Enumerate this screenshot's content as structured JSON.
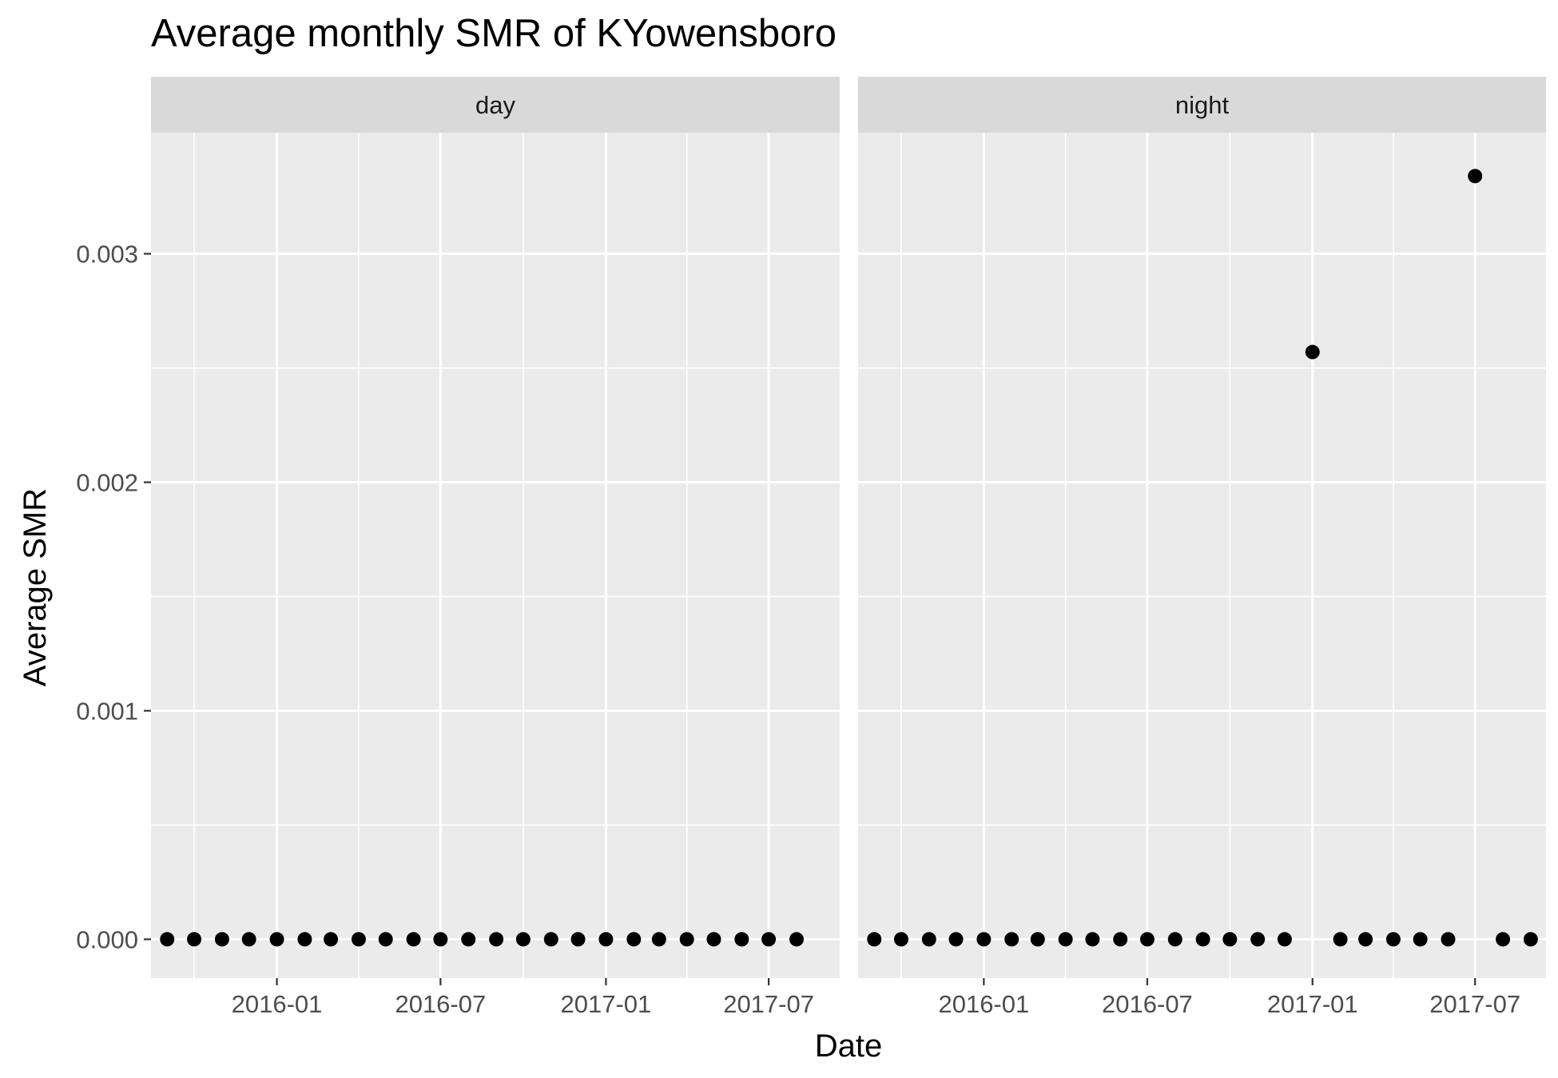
{
  "chart_data": {
    "type": "scatter",
    "title": "Average monthly SMR of KYowensboro",
    "xlabel": "Date",
    "ylabel": "Average SMR",
    "x_ticks": [
      "2016-01",
      "2016-07",
      "2017-01",
      "2017-07"
    ],
    "y_ticks": [
      "0.000",
      "0.001",
      "0.002",
      "0.003"
    ],
    "ylim": [
      -0.00017,
      0.00353
    ],
    "xlim": [
      "2015-08-14",
      "2017-09-18"
    ],
    "grid": true,
    "point_color": "#000000",
    "facets": [
      {
        "label": "day",
        "points": [
          {
            "x": "2015-09-01",
            "y": 0
          },
          {
            "x": "2015-10-01",
            "y": 0
          },
          {
            "x": "2015-11-01",
            "y": 0
          },
          {
            "x": "2015-12-01",
            "y": 0
          },
          {
            "x": "2016-01-01",
            "y": 0
          },
          {
            "x": "2016-02-01",
            "y": 0
          },
          {
            "x": "2016-03-01",
            "y": 0
          },
          {
            "x": "2016-04-01",
            "y": 0
          },
          {
            "x": "2016-05-01",
            "y": 0
          },
          {
            "x": "2016-06-01",
            "y": 0
          },
          {
            "x": "2016-07-01",
            "y": 0
          },
          {
            "x": "2016-08-01",
            "y": 0
          },
          {
            "x": "2016-09-01",
            "y": 0
          },
          {
            "x": "2016-10-01",
            "y": 0
          },
          {
            "x": "2016-11-01",
            "y": 0
          },
          {
            "x": "2016-12-01",
            "y": 0
          },
          {
            "x": "2017-01-01",
            "y": 0
          },
          {
            "x": "2017-02-01",
            "y": 0
          },
          {
            "x": "2017-03-01",
            "y": 0
          },
          {
            "x": "2017-04-01",
            "y": 0
          },
          {
            "x": "2017-05-01",
            "y": 0
          },
          {
            "x": "2017-06-01",
            "y": 0
          },
          {
            "x": "2017-07-01",
            "y": 0
          },
          {
            "x": "2017-08-01",
            "y": 0
          }
        ]
      },
      {
        "label": "night",
        "points": [
          {
            "x": "2015-09-01",
            "y": 0
          },
          {
            "x": "2015-10-01",
            "y": 0
          },
          {
            "x": "2015-11-01",
            "y": 0
          },
          {
            "x": "2015-12-01",
            "y": 0
          },
          {
            "x": "2016-01-01",
            "y": 0
          },
          {
            "x": "2016-02-01",
            "y": 0
          },
          {
            "x": "2016-03-01",
            "y": 0
          },
          {
            "x": "2016-04-01",
            "y": 0
          },
          {
            "x": "2016-05-01",
            "y": 0
          },
          {
            "x": "2016-06-01",
            "y": 0
          },
          {
            "x": "2016-07-01",
            "y": 0
          },
          {
            "x": "2016-08-01",
            "y": 0
          },
          {
            "x": "2016-09-01",
            "y": 0
          },
          {
            "x": "2016-10-01",
            "y": 0
          },
          {
            "x": "2016-11-01",
            "y": 0
          },
          {
            "x": "2016-12-01",
            "y": 0
          },
          {
            "x": "2017-01-01",
            "y": 0.00257
          },
          {
            "x": "2017-02-01",
            "y": 0
          },
          {
            "x": "2017-03-01",
            "y": 0
          },
          {
            "x": "2017-04-01",
            "y": 0
          },
          {
            "x": "2017-05-01",
            "y": 0
          },
          {
            "x": "2017-06-01",
            "y": 0
          },
          {
            "x": "2017-07-01",
            "y": 0.00334
          },
          {
            "x": "2017-08-01",
            "y": 0
          },
          {
            "x": "2017-09-01",
            "y": 0
          }
        ]
      }
    ]
  }
}
